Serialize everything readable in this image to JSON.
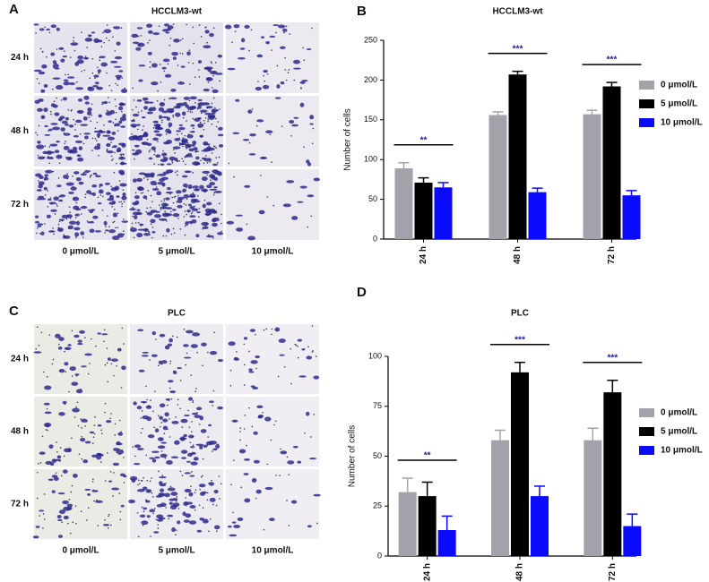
{
  "panels": [
    {
      "label": "A",
      "title": "HCCLM3-wt",
      "rows": [
        "24 h",
        "48 h",
        "72 h"
      ],
      "columns": [
        "0 μmol/L",
        "5 μmol/L",
        "10 μmol/L"
      ]
    },
    {
      "label": "C",
      "title": "PLC",
      "rows": [
        "24 h",
        "48 h",
        "72 h"
      ],
      "columns": [
        "0 μmol/L",
        "5 μmol/L",
        "10 μmol/L"
      ]
    }
  ],
  "chart_data": [
    {
      "type": "bar",
      "panel_label": "B",
      "title": "HCCLM3-wt",
      "y_label": "Number of cells",
      "categories": [
        "24 h",
        "48 h",
        "72 h"
      ],
      "series": [
        {
          "name": "0 μmol/L",
          "color": "#a2a2aa",
          "values": [
            89,
            156,
            157
          ],
          "errors": [
            7,
            4,
            5
          ]
        },
        {
          "name": "5 μmol/L",
          "color": "#000000",
          "values": [
            71,
            207,
            192
          ],
          "errors": [
            6,
            4,
            5
          ]
        },
        {
          "name": "10 μmol/L",
          "color": "#0a0aff",
          "values": [
            65,
            59,
            55
          ],
          "errors": [
            6,
            5,
            6
          ]
        }
      ],
      "annotations": [
        "**",
        "***",
        "***"
      ],
      "ylim": [
        0,
        250
      ],
      "yticks": [
        0,
        50,
        100,
        150,
        200,
        250
      ]
    },
    {
      "type": "bar",
      "panel_label": "D",
      "title": "PLC",
      "y_label": "Number of cells",
      "categories": [
        "24 h",
        "48 h",
        "72 h"
      ],
      "series": [
        {
          "name": "0 μmol/L",
          "color": "#a2a2aa",
          "values": [
            32,
            58,
            58
          ],
          "errors": [
            7,
            5,
            6
          ]
        },
        {
          "name": "5 μmol/L",
          "color": "#000000",
          "values": [
            30,
            92,
            82
          ],
          "errors": [
            7,
            5,
            6
          ]
        },
        {
          "name": "10 μmol/L",
          "color": "#0a0aff",
          "values": [
            13,
            30,
            15
          ],
          "errors": [
            7,
            5,
            6
          ]
        }
      ],
      "annotations": [
        "**",
        "***",
        "***"
      ],
      "ylim": [
        0,
        100
      ],
      "yticks": [
        0,
        25,
        50,
        75,
        100
      ]
    }
  ]
}
